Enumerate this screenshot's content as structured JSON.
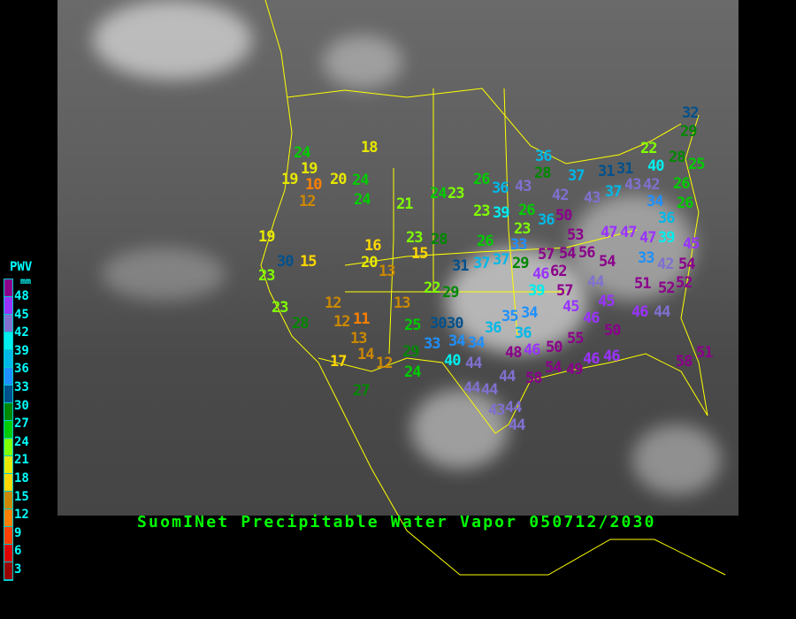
{
  "title": "SuomINet Precipitable Water Vapor 050712/2030",
  "legend": {
    "title": "PWV",
    "unit": "mm",
    "tick_labels": [
      "48",
      "45",
      "42",
      "39",
      "36",
      "33",
      "30",
      "27",
      "24",
      "21",
      "18",
      "15",
      "12",
      "9",
      "6",
      "3"
    ],
    "colors": [
      "#8b008b",
      "#9933ff",
      "#8070d0",
      "#00eeee",
      "#00b8e8",
      "#1e90ff",
      "#00508c",
      "#008800",
      "#00cc00",
      "#80ff00",
      "#e8e800",
      "#ffd700",
      "#cc8800",
      "#ff8000",
      "#ff4000",
      "#dd0000",
      "#990000"
    ]
  },
  "stations": [
    "24",
    "19",
    "19",
    "10",
    "20",
    "24",
    "24",
    "12",
    "18",
    "21",
    "24",
    "23",
    "19",
    "30",
    "15",
    "23",
    "16",
    "20",
    "13",
    "23",
    "28",
    "15",
    "22",
    "29",
    "23",
    "28",
    "12",
    "12",
    "11",
    "13",
    "14",
    "17",
    "12",
    "13",
    "25",
    "30",
    "30",
    "33",
    "34",
    "29",
    "24",
    "40",
    "44",
    "27",
    "44",
    "36",
    "28",
    "37",
    "31",
    "26",
    "36",
    "43",
    "42",
    "43",
    "23",
    "39",
    "26",
    "36",
    "50",
    "23",
    "33",
    "26",
    "37",
    "53",
    "54",
    "56",
    "54",
    "57",
    "47",
    "31",
    "37",
    "29",
    "46",
    "62",
    "39",
    "57",
    "44",
    "32",
    "29",
    "22",
    "28",
    "40",
    "25",
    "31",
    "43",
    "42",
    "37",
    "26",
    "26",
    "34",
    "36",
    "39",
    "47",
    "47",
    "45",
    "33",
    "42",
    "54",
    "52",
    "51",
    "52",
    "35",
    "34",
    "36",
    "36",
    "34",
    "45",
    "45",
    "46",
    "46",
    "44",
    "48",
    "46",
    "50",
    "55",
    "50",
    "54",
    "49",
    "46",
    "46",
    "58",
    "51",
    "44",
    "58",
    "44",
    "43",
    "44",
    "44"
  ]
}
